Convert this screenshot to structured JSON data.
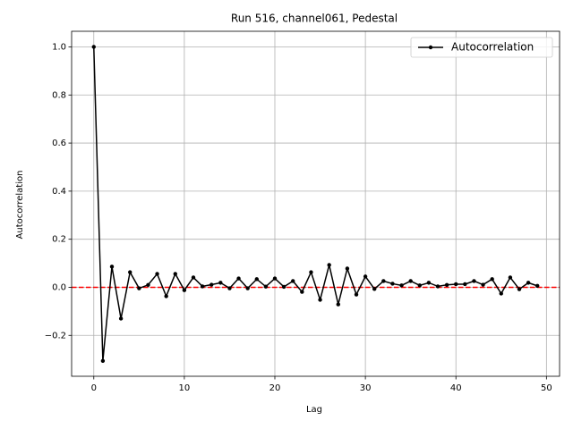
{
  "chart_data": {
    "type": "line",
    "title": "Run 516, channel061, Pedestal",
    "xlabel": "Lag",
    "ylabel": "Autocorrelation",
    "x": [
      0,
      1,
      2,
      3,
      4,
      5,
      6,
      7,
      8,
      9,
      10,
      11,
      12,
      13,
      14,
      15,
      16,
      17,
      18,
      19,
      20,
      21,
      22,
      23,
      24,
      25,
      26,
      27,
      28,
      29,
      30,
      31,
      32,
      33,
      34,
      35,
      36,
      37,
      38,
      39,
      40,
      41,
      42,
      43,
      44,
      45,
      46,
      47,
      48,
      49
    ],
    "series": [
      {
        "name": "Autocorrelation",
        "color": "#000000",
        "values": [
          1.0,
          -0.306,
          0.086,
          -0.13,
          0.063,
          -0.004,
          0.01,
          0.056,
          -0.037,
          0.056,
          -0.012,
          0.041,
          0.004,
          0.011,
          0.019,
          -0.004,
          0.037,
          -0.004,
          0.034,
          0.003,
          0.037,
          0.002,
          0.026,
          -0.019,
          0.063,
          -0.052,
          0.093,
          -0.071,
          0.078,
          -0.03,
          0.045,
          -0.007,
          0.026,
          0.015,
          0.008,
          0.026,
          0.008,
          0.019,
          0.004,
          0.01,
          0.013,
          0.013,
          0.026,
          0.011,
          0.034,
          -0.026,
          0.041,
          -0.008,
          0.019,
          0.006
        ]
      }
    ],
    "hline": {
      "value": 0,
      "color": "#ff0000"
    },
    "xlim": [
      -2.45,
      51.45
    ],
    "xticks": [
      0,
      10,
      20,
      30,
      40,
      50
    ],
    "ylim": [
      -0.37,
      1.065
    ],
    "yticks": [
      {
        "value": -0.2,
        "label": "−0.2"
      },
      {
        "value": 0,
        "label": "0.0"
      },
      0.2,
      0.4,
      0.6,
      0.8,
      {
        "value": 1,
        "label": "1.0"
      }
    ],
    "grid": true,
    "legend": "upper-right"
  }
}
